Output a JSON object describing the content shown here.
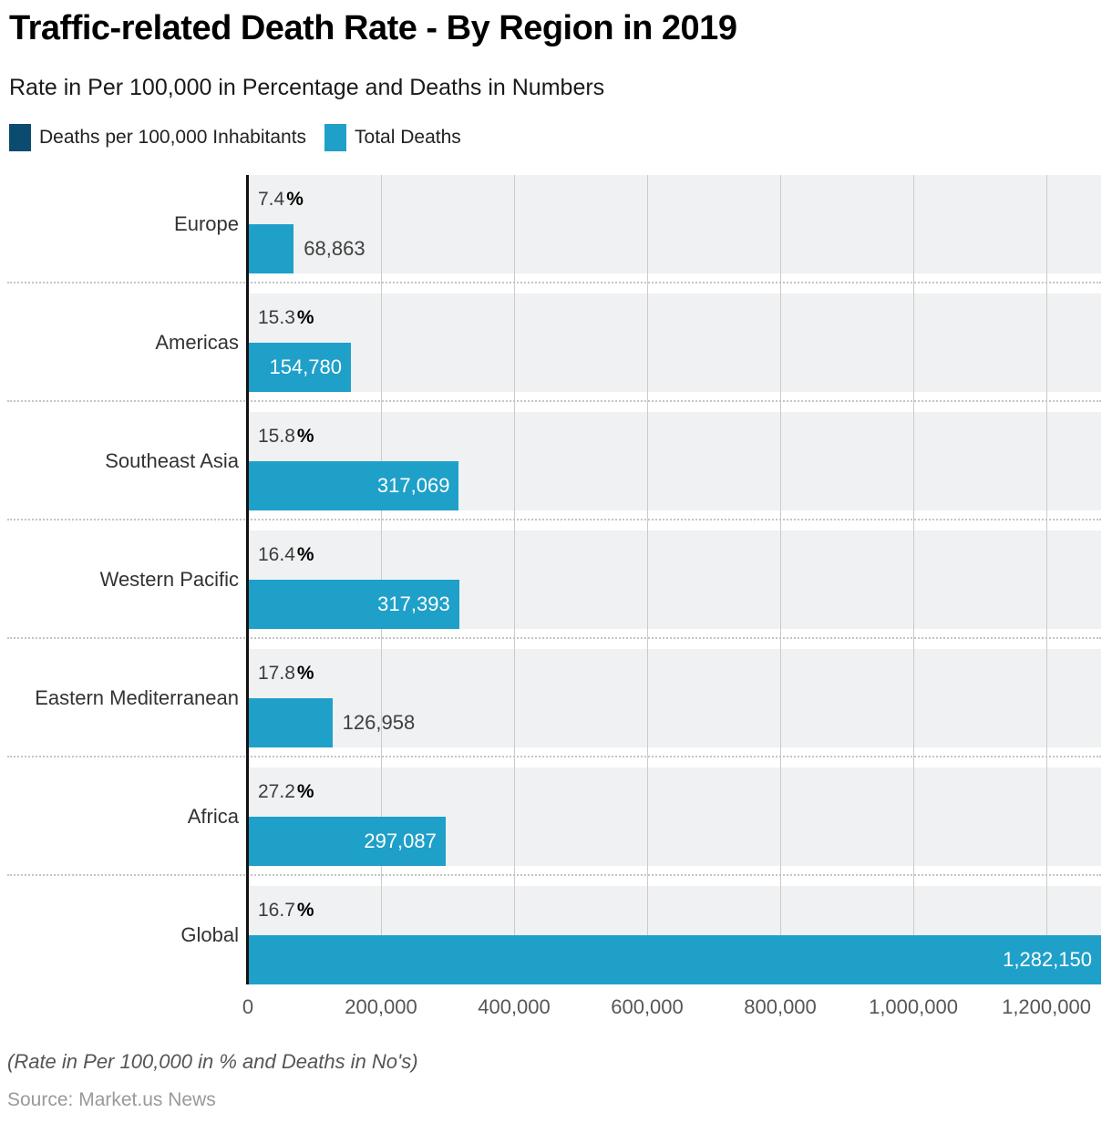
{
  "title": "Traffic-related Death Rate - By Region in 2019",
  "subtitle": "Rate in Per 100,000 in Percentage and Deaths in Numbers",
  "legend": [
    {
      "label": "Deaths per 100,000 Inhabitants",
      "color": "#0b4b70",
      "icon": "legend-swatch-navy"
    },
    {
      "label": "Total Deaths",
      "color": "#1ea0c9",
      "icon": "legend-swatch-cyan"
    }
  ],
  "footnote": "(Rate in Per 100,000 in % and Deaths in No's)",
  "source": "Source: Market.us News",
  "chart_data": {
    "type": "bar",
    "orientation": "horizontal",
    "title": "Traffic-related Death Rate - By Region in 2019",
    "subtitle": "Rate in Per 100,000 in Percentage and Deaths in Numbers",
    "categories": [
      "Europe",
      "Americas",
      "Southeast Asia",
      "Western Pacific",
      "Eastern Mediterranean",
      "Africa",
      "Global"
    ],
    "series": [
      {
        "name": "Deaths per 100,000 Inhabitants",
        "unit": "%",
        "values": [
          7.4,
          15.3,
          15.8,
          16.4,
          17.8,
          27.2,
          16.7
        ]
      },
      {
        "name": "Total Deaths",
        "unit": "deaths",
        "values": [
          68863,
          154780,
          317069,
          317393,
          126958,
          297087,
          1282150
        ]
      }
    ],
    "pct_labels": [
      "7.4",
      "15.3",
      "15.8",
      "16.4",
      "17.8",
      "27.2",
      "16.7"
    ],
    "pct_symbol": "%",
    "deaths_labels": [
      "68,863",
      "154,780",
      "317,069",
      "317,393",
      "126,958",
      "297,087",
      "1,282,150"
    ],
    "deaths_label_inside": [
      false,
      true,
      true,
      true,
      false,
      true,
      true
    ],
    "x_ticks": [
      "0",
      "200,000",
      "400,000",
      "600,000",
      "800,000",
      "1,000,000",
      "1,200,000"
    ],
    "x_tick_values": [
      0,
      200000,
      400000,
      600000,
      800000,
      1000000,
      1200000
    ],
    "xlim": [
      0,
      1282150
    ],
    "xlabel": "",
    "ylabel": "",
    "grid": "vertical",
    "legend_position": "top",
    "colors": {
      "pct_bar": "#0b4b70",
      "deaths_bar": "#1ea0c9",
      "band": "#f0f1f2",
      "gridline": "#cbcbcb",
      "axis": "#111111"
    }
  }
}
